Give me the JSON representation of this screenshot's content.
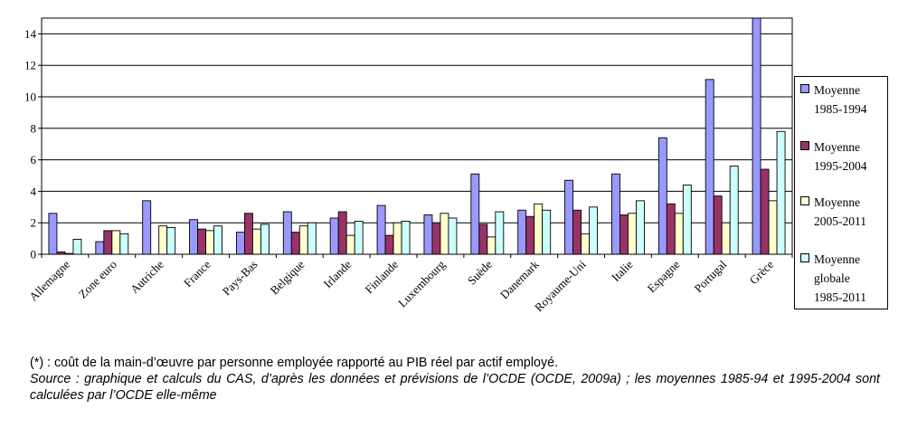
{
  "chart_data": {
    "type": "bar",
    "title": "",
    "xlabel": "",
    "ylabel": "",
    "ylim": [
      0,
      15
    ],
    "yticks": [
      0,
      2,
      4,
      6,
      8,
      10,
      12,
      14
    ],
    "grid": true,
    "legend_position": "right",
    "categories": [
      "Allemagne",
      "Zone euro",
      "Autriche",
      "France",
      "Pays-Bas",
      "Belgique",
      "Irlande",
      "Finlande",
      "Luxembourg",
      "Suède",
      "Danemark",
      "Royaume-Uni",
      "Italie",
      "Espagne",
      "Portugal",
      "Grèce"
    ],
    "series": [
      {
        "name": "Moyenne\n1985-1994",
        "color": "#9999ff",
        "values": [
          2.6,
          0.8,
          3.4,
          2.2,
          1.4,
          2.7,
          2.3,
          3.1,
          2.5,
          5.1,
          2.8,
          4.7,
          5.1,
          7.4,
          11.1,
          15.0
        ]
      },
      {
        "name": "Moyenne\n1995-2004",
        "color": "#993366",
        "values": [
          0.15,
          1.5,
          0.0,
          1.6,
          2.6,
          1.4,
          2.7,
          1.2,
          2.0,
          1.9,
          2.4,
          2.8,
          2.5,
          3.2,
          3.7,
          5.4
        ]
      },
      {
        "name": "Moyenne\n2005-2011",
        "color": "#ffffcc",
        "values": [
          0.05,
          1.5,
          1.8,
          1.5,
          1.6,
          1.8,
          1.2,
          2.0,
          2.6,
          1.1,
          3.2,
          1.3,
          2.6,
          2.6,
          2.0,
          3.4
        ]
      },
      {
        "name": "Moyenne\nglobale\n1985-2011",
        "color": "#ccffff",
        "values": [
          0.95,
          1.3,
          1.7,
          1.8,
          1.9,
          2.0,
          2.1,
          2.1,
          2.3,
          2.7,
          2.8,
          3.0,
          3.4,
          4.4,
          5.6,
          7.8
        ]
      }
    ]
  },
  "caption": {
    "note": "(*) : coût de la main-d’œuvre par personne employée rapporté au PIB réel par actif employé.",
    "source": "Source : graphique et calculs du CAS, d’après les données et prévisions de l’OCDE (OCDE, 2009a) ; les moyennes 1985-94 et 1995-2004 sont calculées par l’OCDE elle-même"
  }
}
